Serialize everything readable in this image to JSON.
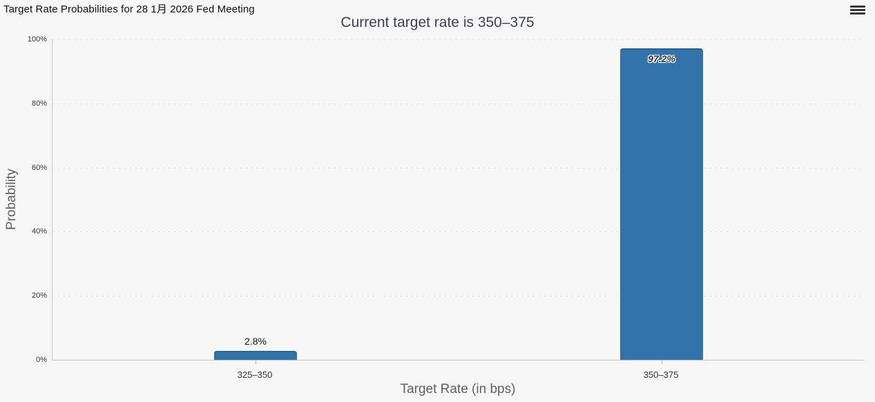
{
  "header": {
    "title": "Target Rate Probabilities for 28 1月 2026 Fed Meeting"
  },
  "menu": {
    "icon": "hamburger-menu"
  },
  "chart_data": {
    "type": "bar",
    "title": "Current target rate is 350–375",
    "xlabel": "Target Rate (in bps)",
    "ylabel": "Probability",
    "categories": [
      "325–350",
      "350–375"
    ],
    "values": [
      2.8,
      97.2
    ],
    "value_labels": [
      "2.8%",
      "97.2%"
    ],
    "ylim": [
      0,
      100
    ],
    "ytick_values": [
      0,
      20,
      40,
      60,
      80,
      100
    ],
    "ytick_labels": [
      "0%",
      "20%",
      "40%",
      "60%",
      "80%",
      "100%"
    ],
    "grid": "horizontal-dotted",
    "legend": "none",
    "bar_color": "#3273ab",
    "title_color": "#3a3f5a"
  }
}
